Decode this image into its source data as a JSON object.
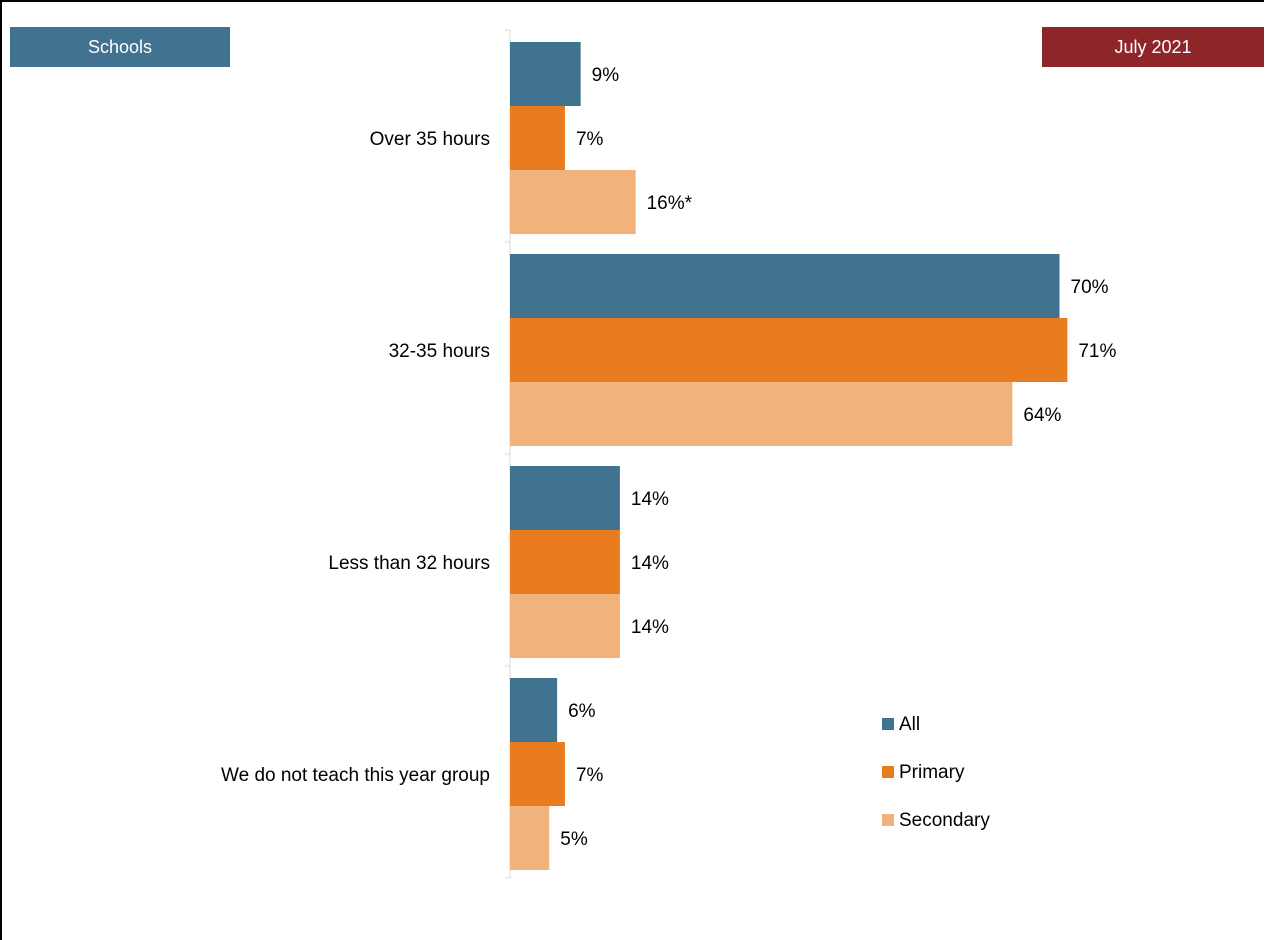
{
  "header": {
    "left_tag": "Schools",
    "right_tag": "July 2021"
  },
  "colors": {
    "all": "#41728f",
    "primary": "#e87c1e",
    "secondary": "#f2b27c",
    "tag_left": "#41728f",
    "tag_right": "#8e2629"
  },
  "chart_data": {
    "type": "bar",
    "orientation": "horizontal",
    "categories": [
      "Over 35 hours",
      "32-35 hours",
      "Less than 32 hours",
      "We do not teach this year group"
    ],
    "series": [
      {
        "name": "All",
        "values": [
          9,
          70,
          14,
          6
        ],
        "labels": [
          "9%",
          "70%",
          "14%",
          "6%"
        ]
      },
      {
        "name": "Primary",
        "values": [
          7,
          71,
          14,
          7
        ],
        "labels": [
          "7%",
          "71%",
          "14%",
          "7%"
        ]
      },
      {
        "name": "Secondary",
        "values": [
          16,
          64,
          14,
          5
        ],
        "labels": [
          "16%*",
          "64%",
          "14%",
          "5%"
        ]
      }
    ],
    "xlim": [
      0,
      100
    ],
    "grid": false,
    "legend_position": "bottom-right"
  }
}
